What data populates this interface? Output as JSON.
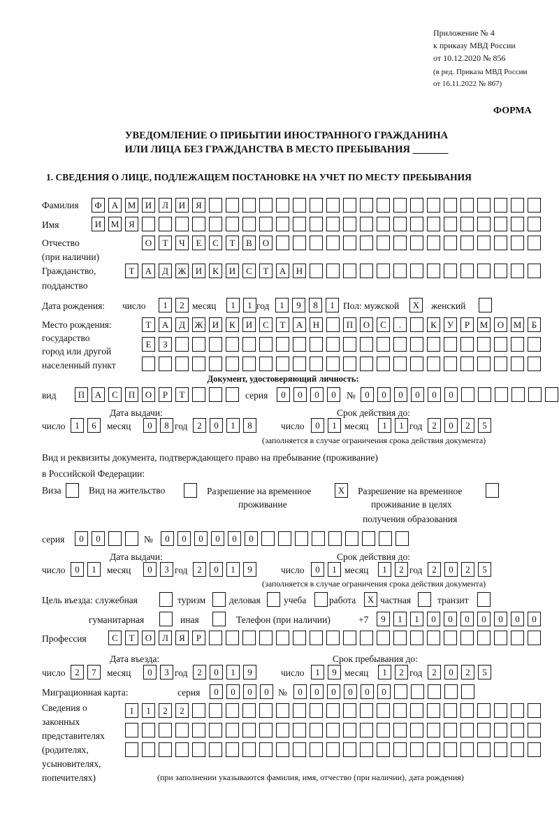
{
  "header": {
    "annex": "Приложение № 4",
    "order": "к приказу МВД России",
    "order_date": "от 10.12.2020 № 856",
    "edition1": "(в ред. Приказа МВД России",
    "edition2": "от 16.11.2022 № 867)",
    "form_label": "ФОРМА",
    "title1": "УВЕДОМЛЕНИЕ О ПРИБЫТИИ ИНОСТРАННОГО ГРАЖДАНИНА",
    "title2": "ИЛИ ЛИЦА БЕЗ ГРАЖДАНСТВА В МЕСТО ПРЕБЫВАНИЯ _______",
    "section1": "1. СВЕДЕНИЯ О ЛИЦЕ, ПОДЛЕЖАЩЕМ ПОСТАНОВКЕ НА УЧЕТ ПО МЕСТУ ПРЕБЫВАНИЯ"
  },
  "labels": {
    "surname": "Фамилия",
    "name": "Имя",
    "patronymic": "Отчество",
    "patronymic_note": "(при наличии)",
    "citizenship": "Гражданство,",
    "citizenship2": "подданство",
    "birth_date": "Дата рождения:",
    "day": "число",
    "month": "месяц",
    "year": "год",
    "sex": "Пол: мужской",
    "female": "женский",
    "birth_place": "Место рождения:",
    "birth_place2": "государство",
    "birth_place3": "город или другой",
    "birth_place4": "населенный пункт",
    "id_doc": "Документ, удостоверяющий личность:",
    "kind": "вид",
    "series": "серия",
    "number": "№",
    "issue_date": "Дата выдачи:",
    "valid_until": "Срок действия до:",
    "validity_note": "(заполняется в случае ограничения срока действия документа)",
    "permit_doc1": "Вид и реквизиты документа, подтверждающего право на пребывание (проживание)",
    "permit_doc2": "в Российской Федерации:",
    "visa": "Виза",
    "residence": "Вид на жительство",
    "temp_res1": "Разрешение на временное",
    "temp_res2": "проживание",
    "temp_edu1": "Разрешение на временное",
    "temp_edu2": "проживание в целях",
    "temp_edu3": "получения образования",
    "purpose": "Цель въезда: служебная",
    "tourism": "туризм",
    "business": "деловая",
    "study": "учеба",
    "work": "работа",
    "private": "частная",
    "transit": "транзит",
    "humanitarian": "гуманитарная",
    "other": "иная",
    "phone": "Телефон (при наличии)",
    "phone_prefix": "+7",
    "profession": "Профессия",
    "entry_date": "Дата въезда:",
    "stay_until": "Срок пребывания до:",
    "migration_card": "Миграционная карта:",
    "rep1": "Сведения о",
    "rep2": "законных",
    "rep3": "представителях",
    "rep4": "(родителях,",
    "rep5": "усыновителях,",
    "rep6": "попечителях)",
    "rep_note": "(при заполнении указываются фамилия, имя, отчество (при наличии), дата рождения)"
  },
  "values": {
    "surname": "ФАМИЛИЯ",
    "name": "ИМЯ",
    "patronymic": "ОТЧЕСТВО",
    "citizenship": "ТАДЖИКИСТАН",
    "birth_day": "12",
    "birth_month": "11",
    "birth_year": "1981",
    "sex_male": "X",
    "sex_female": "",
    "birth_place1": "ТАДЖИКИСТАН ПОС. КУРМОМБ",
    "birth_place2": "ЕЗ",
    "birth_place3": "",
    "id_kind": "ПАСПОРТ",
    "id_series": "0000",
    "id_number": "000000",
    "id_issue_day": "16",
    "id_issue_month": "08",
    "id_issue_year": "2018",
    "id_valid_day": "01",
    "id_valid_month": "11",
    "id_valid_year": "2025",
    "visa": "",
    "residence": "",
    "temp_res": "X",
    "temp_edu": "",
    "permit_series": "00",
    "permit_number": "000000",
    "permit_issue_day": "01",
    "permit_issue_month": "03",
    "permit_issue_year": "2019",
    "permit_valid_day": "01",
    "permit_valid_month": "12",
    "permit_valid_year": "2025",
    "p_service": "",
    "p_tourism": "",
    "p_business": "",
    "p_study": "",
    "p_work": "X",
    "p_private": "",
    "p_transit": "",
    "p_humanitarian": "",
    "p_other": "",
    "phone": "9110000000",
    "profession": "СТОЛЯР",
    "entry_day": "27",
    "entry_month": "03",
    "entry_year": "2019",
    "stay_day": "19",
    "stay_month": "12",
    "stay_year": "2025",
    "mc_series": "0000",
    "mc_number": "000000",
    "rep1": "1122",
    "rep2": "",
    "rep3": ""
  }
}
